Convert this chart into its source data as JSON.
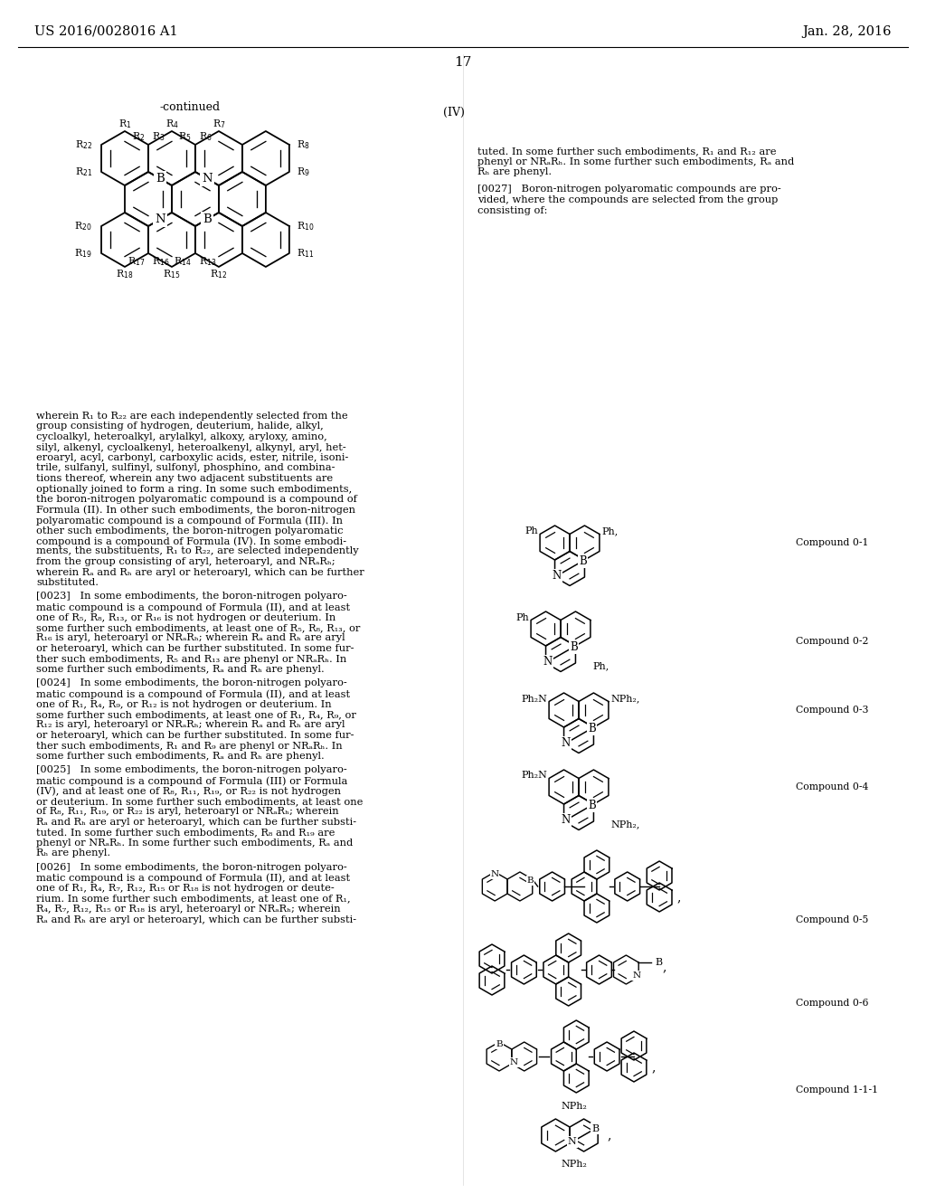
{
  "background_color": "#ffffff",
  "header_left": "US 2016/0028016 A1",
  "header_right": "Jan. 28, 2016",
  "page_number": "17"
}
